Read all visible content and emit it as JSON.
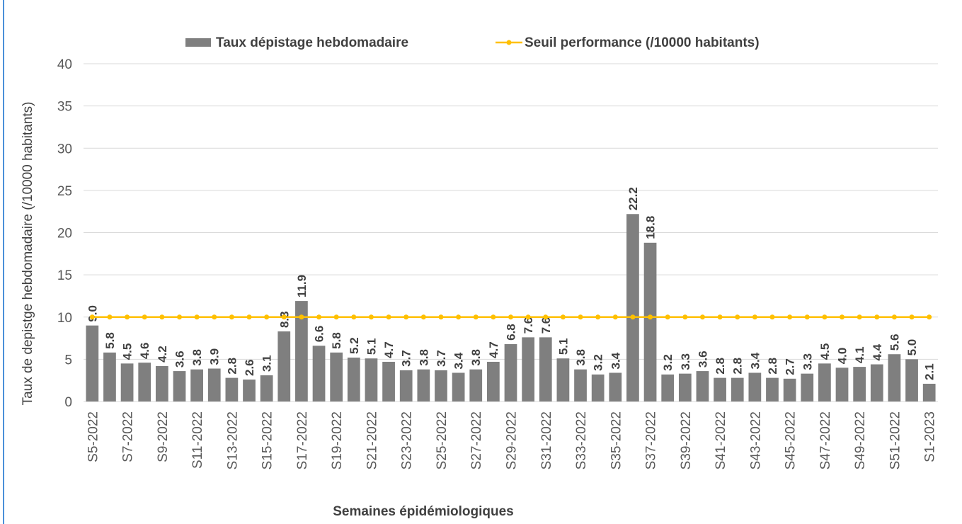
{
  "chart_data": {
    "type": "bar",
    "y_label": "Taux de depistge hebdomadaire (/10000 habitants)",
    "x_label": "Semaines épidémiologiques",
    "categories": [
      "S5-2022",
      null,
      "S7-2022",
      null,
      "S9-2022",
      null,
      "S11-2022",
      null,
      "S13-2022",
      null,
      "S15-2022",
      null,
      "S17-2022",
      null,
      "S19-2022",
      null,
      "S21-2022",
      null,
      "S23-2022",
      null,
      "S25-2022",
      null,
      "S27-2022",
      null,
      "S29-2022",
      null,
      "S31-2022",
      null,
      "S33-2022",
      null,
      "S35-2022",
      null,
      "S37-2022",
      null,
      "S39-2022",
      null,
      "S41-2022",
      null,
      "S43-2022",
      null,
      "S45-2022",
      null,
      "S47-2022",
      null,
      "S49-2022",
      null,
      "S51-2022",
      null,
      "S1-2023"
    ],
    "series": [
      {
        "name": "Taux dépistage hebdomadaire",
        "color": "#7f7f7f",
        "type": "bar",
        "values": [
          9.0,
          5.8,
          4.5,
          4.6,
          4.2,
          3.6,
          3.8,
          3.9,
          2.8,
          2.6,
          3.1,
          8.3,
          11.9,
          6.6,
          5.8,
          5.2,
          5.1,
          4.7,
          3.7,
          3.8,
          3.7,
          3.4,
          3.8,
          4.7,
          6.8,
          7.6,
          7.6,
          5.1,
          3.8,
          3.2,
          3.4,
          22.2,
          18.8,
          3.2,
          3.3,
          3.6,
          2.8,
          2.8,
          3.4,
          2.8,
          2.7,
          3.3,
          4.5,
          4.0,
          4.1,
          4.4,
          5.6,
          5.0,
          2.1
        ],
        "value_labels": [
          "9.0",
          "5.8",
          "4.5",
          "4.6",
          "4.2",
          "3.6",
          "3.8",
          "3.9",
          "2.8",
          "2.6",
          "3.1",
          "8.3",
          "11.9",
          "6.6",
          "5.8",
          "5.2",
          "5.1",
          "4.7",
          "3.7",
          "3.8",
          "3.7",
          "3.4",
          "3.8",
          "4.7",
          "6.8",
          "7.6",
          "7.6",
          "5.1",
          "3.8",
          "3.2",
          "3.4",
          "22.2",
          "18.8",
          "3.2",
          "3.3",
          "3.6",
          "2.8",
          "2.8",
          "3.4",
          "2.8",
          "2.7",
          "3.3",
          "4.5",
          "4.0",
          "4.1",
          "4.4",
          "5.6",
          "5.0",
          "2.1"
        ]
      },
      {
        "name": "Seuil performance (/10000 habitants)",
        "color": "#ffc000",
        "type": "line",
        "values": [
          10,
          10,
          10,
          10,
          10,
          10,
          10,
          10,
          10,
          10,
          10,
          10,
          10,
          10,
          10,
          10,
          10,
          10,
          10,
          10,
          10,
          10,
          10,
          10,
          10,
          10,
          10,
          10,
          10,
          10,
          10,
          10,
          10,
          10,
          10,
          10,
          10,
          10,
          10,
          10,
          10,
          10,
          10,
          10,
          10,
          10,
          10,
          10,
          10
        ]
      }
    ],
    "ylim": [
      0,
      40
    ],
    "yticks": [
      0,
      5,
      10,
      15,
      20,
      25,
      30,
      35,
      40
    ],
    "grid": true,
    "legend": "top"
  }
}
